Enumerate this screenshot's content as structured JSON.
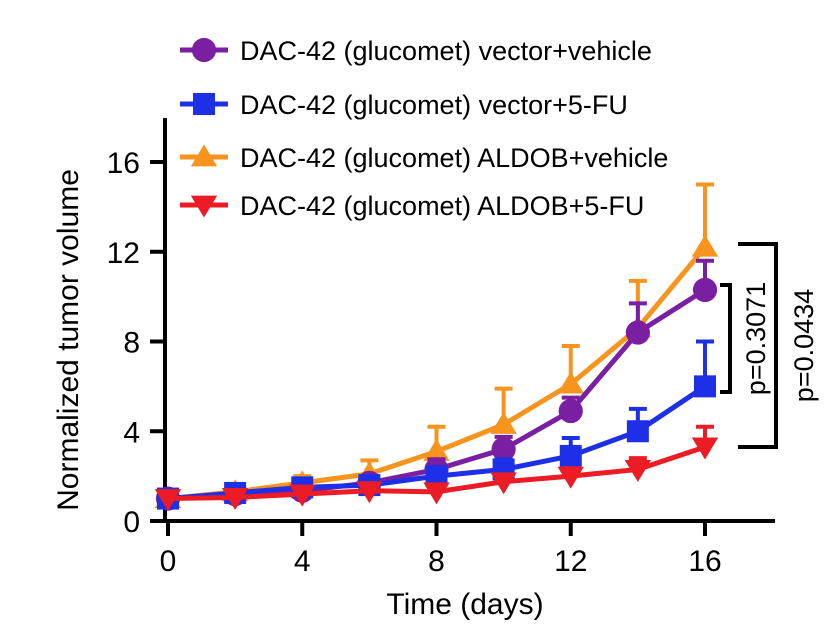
{
  "chart_data": {
    "type": "line",
    "xlabel": "Time (days)",
    "ylabel": "Normalized tumor volume",
    "xlim": [
      0,
      18
    ],
    "ylim": [
      0,
      18
    ],
    "xticks": [
      0,
      4,
      8,
      12,
      16
    ],
    "yticks": [
      0,
      4,
      8,
      12,
      16
    ],
    "legend_position": "top",
    "series": [
      {
        "name": "DAC-42 (glucomet) vector+vehicle",
        "color": "#7B1FA2",
        "marker": "circle",
        "x": [
          0,
          2,
          4,
          6,
          8,
          10,
          12,
          14,
          16
        ],
        "y": [
          1.0,
          1.2,
          1.35,
          1.7,
          2.3,
          3.2,
          4.9,
          8.4,
          10.3
        ],
        "err": [
          0.05,
          0.15,
          0.25,
          0.3,
          0.45,
          0.55,
          0.6,
          1.3,
          1.3
        ]
      },
      {
        "name": "DAC-42 (glucomet) vector+5-FU",
        "color": "#1E2FE8",
        "marker": "square",
        "x": [
          0,
          2,
          4,
          6,
          8,
          10,
          12,
          14,
          16
        ],
        "y": [
          1.0,
          1.25,
          1.5,
          1.6,
          2.0,
          2.3,
          2.9,
          4.0,
          6.0
        ],
        "err": [
          0.05,
          0.15,
          0.2,
          0.25,
          0.35,
          0.45,
          0.8,
          1.0,
          2.0
        ]
      },
      {
        "name": "DAC-42 (glucomet) ALDOB+vehicle",
        "color": "#F7941D",
        "marker": "triangle-up",
        "x": [
          0,
          2,
          4,
          6,
          8,
          10,
          12,
          14,
          16
        ],
        "y": [
          1.0,
          1.3,
          1.7,
          2.1,
          3.1,
          4.3,
          6.1,
          8.6,
          12.2
        ],
        "err": [
          0.05,
          0.15,
          0.3,
          0.6,
          1.1,
          1.6,
          1.7,
          2.1,
          2.8
        ]
      },
      {
        "name": "DAC-42 (glucomet) ALDOB+5-FU",
        "color": "#ED1C24",
        "marker": "triangle-down",
        "x": [
          0,
          2,
          4,
          6,
          8,
          10,
          12,
          14,
          16
        ],
        "y": [
          1.0,
          1.05,
          1.2,
          1.35,
          1.3,
          1.75,
          2.0,
          2.3,
          3.3
        ],
        "err": [
          0.05,
          0.1,
          0.15,
          0.2,
          0.25,
          0.3,
          0.35,
          0.5,
          0.9
        ]
      }
    ],
    "annotations": [
      {
        "text": "p=0.3071",
        "from_series": 0,
        "to_series": 1,
        "at_x": 16
      },
      {
        "text": "p=0.0434",
        "from_series": 2,
        "to_series": 3,
        "at_x": 16
      }
    ]
  }
}
